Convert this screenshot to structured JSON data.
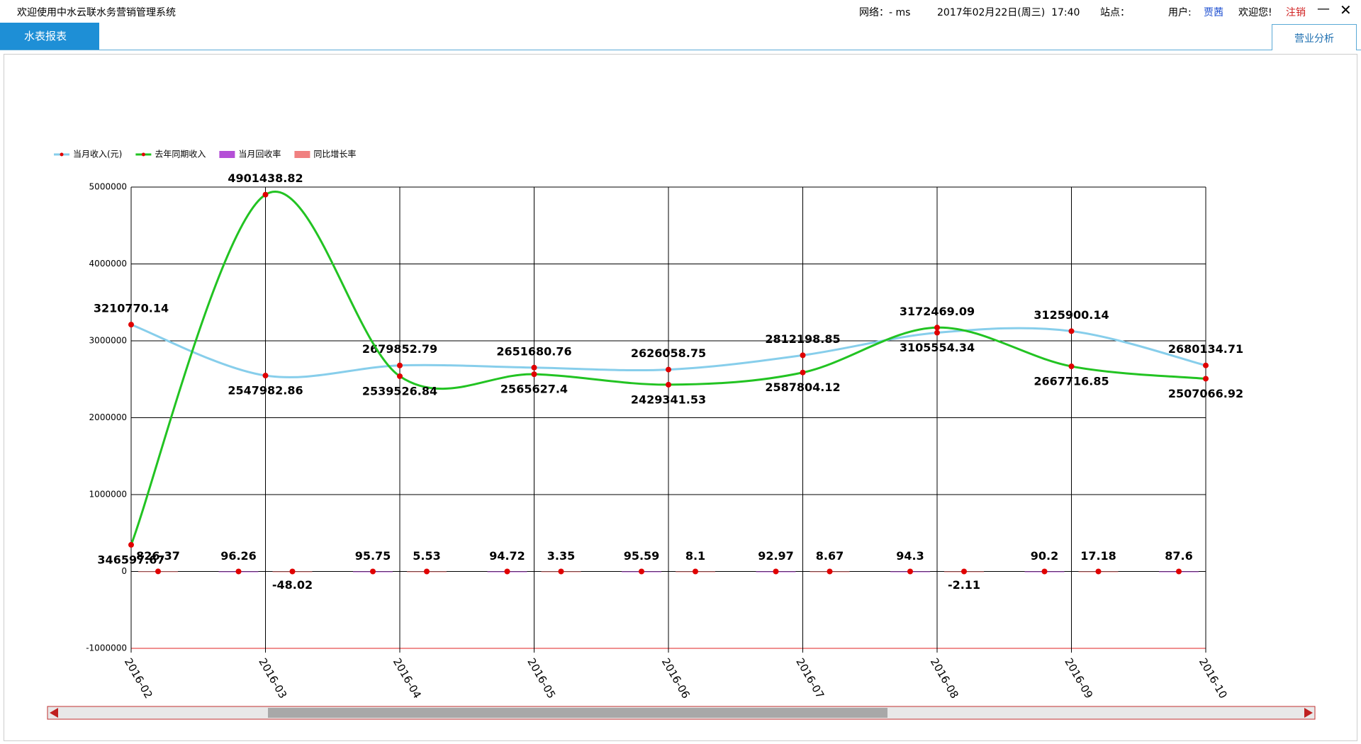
{
  "ui": {
    "app_title": "欢迎使用中水云联水务营销管理系统",
    "network": "网络：- ms",
    "datetime": "2017年02月22日(周三)  17:40",
    "site": "站点：",
    "user_label": "用户:",
    "user_name": "贾茜",
    "welcome": "欢迎您!",
    "logout": "注销",
    "tab": "水表报表",
    "right_tab": "营业分析"
  },
  "chart_data": {
    "type": "line",
    "categories": [
      "2016-02",
      "2016-03",
      "2016-04",
      "2016-05",
      "2016-06",
      "2016-07",
      "2016-08",
      "2016-09",
      "2016-10"
    ],
    "series": [
      {
        "name": "当月收入(元)",
        "type": "line",
        "color": "#87ceeb",
        "values": [
          3210770.14,
          2547982.86,
          2679852.79,
          2651680.76,
          2626058.75,
          2812198.85,
          3105554.34,
          3125900.14,
          2680134.71
        ]
      },
      {
        "name": "去年同期收入",
        "type": "line",
        "color": "#22c322",
        "values": [
          346597.67,
          4901438.82,
          2539526.84,
          2565627.4,
          2429341.53,
          2587804.12,
          3172469.09,
          2667716.85,
          2507066.92
        ]
      },
      {
        "name": "当月回收率",
        "type": "bar",
        "color": "#b44fd6",
        "values": [
          null,
          96.26,
          95.75,
          94.72,
          95.59,
          92.97,
          94.3,
          90.2,
          87.6
        ]
      },
      {
        "name": "同比增长率",
        "type": "bar",
        "color": "#f08080",
        "values": [
          826.37,
          -48.02,
          5.53,
          3.35,
          8.1,
          8.67,
          -2.11,
          17.18,
          null
        ]
      }
    ],
    "ylim": [
      -1000000,
      5000000
    ],
    "yticks": [
      -1000000,
      0,
      1000000,
      2000000,
      3000000,
      4000000,
      5000000
    ],
    "grid": true,
    "marker_color": "#e00000",
    "legend": "top-left"
  }
}
